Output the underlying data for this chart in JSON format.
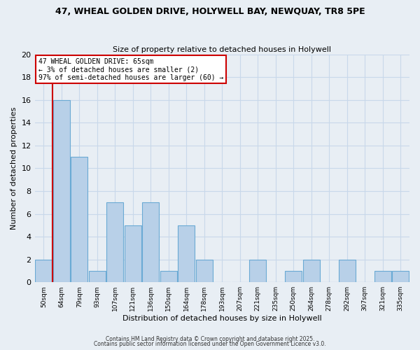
{
  "title1": "47, WHEAL GOLDEN DRIVE, HOLYWELL BAY, NEWQUAY, TR8 5PE",
  "title2": "Size of property relative to detached houses in Holywell",
  "xlabel": "Distribution of detached houses by size in Holywell",
  "ylabel": "Number of detached properties",
  "bin_labels": [
    "50sqm",
    "64sqm",
    "79sqm",
    "93sqm",
    "107sqm",
    "121sqm",
    "136sqm",
    "150sqm",
    "164sqm",
    "178sqm",
    "193sqm",
    "207sqm",
    "221sqm",
    "235sqm",
    "250sqm",
    "264sqm",
    "278sqm",
    "292sqm",
    "307sqm",
    "321sqm",
    "335sqm"
  ],
  "counts": [
    2,
    16,
    11,
    1,
    7,
    5,
    7,
    1,
    5,
    2,
    0,
    0,
    2,
    0,
    1,
    2,
    0,
    2,
    0,
    1,
    1
  ],
  "bar_color": "#b8d0e8",
  "bar_edge_color": "#6aaad4",
  "grid_color": "#c8d8ea",
  "background_color": "#e8eef4",
  "vline_index": 1,
  "vline_color": "#cc0000",
  "annotation_text": "47 WHEAL GOLDEN DRIVE: 65sqm\n← 3% of detached houses are smaller (2)\n97% of semi-detached houses are larger (60) →",
  "annotation_box_color": "#ffffff",
  "annotation_border_color": "#cc0000",
  "ylim": [
    0,
    20
  ],
  "yticks": [
    0,
    2,
    4,
    6,
    8,
    10,
    12,
    14,
    16,
    18,
    20
  ],
  "footer1": "Contains HM Land Registry data © Crown copyright and database right 2025.",
  "footer2": "Contains public sector information licensed under the Open Government Licence v3.0."
}
